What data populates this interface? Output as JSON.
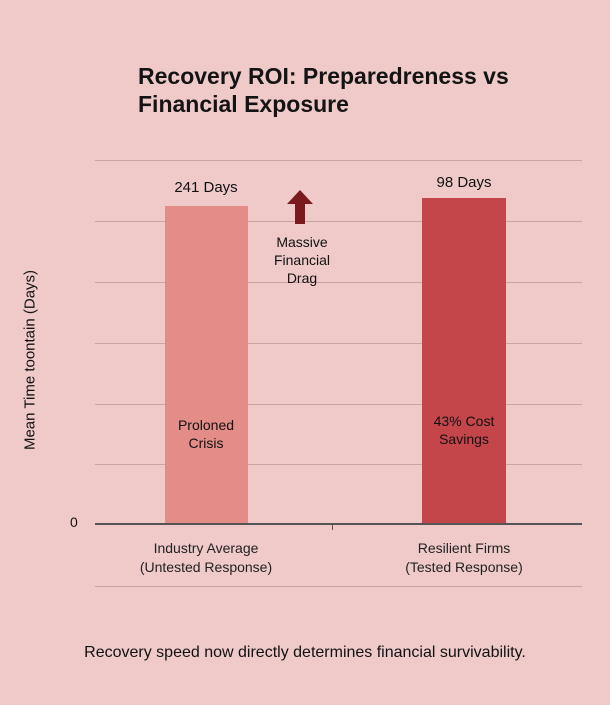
{
  "chart_data": {
    "type": "bar",
    "title": "Recovery ROI: Preparedress vs Financial Exposure",
    "title_lines": [
      "Recovery ROI: Preparedreness vs",
      "Financial Exposure"
    ],
    "ylabel": "Mean Time toontain (Days)",
    "xlabel": "",
    "y_tick_labels": [
      "0"
    ],
    "grid": true,
    "categories": [
      {
        "line1": "Industry Average",
        "line2": "(Untested Response)"
      },
      {
        "line1": "Resilient Firms",
        "line2": "(Tested Response)"
      }
    ],
    "values": [
      241,
      98
    ],
    "data_labels": [
      "241 Days",
      "98 Days"
    ],
    "bar_annotations": [
      [
        "Proloned",
        "Crisis"
      ],
      [
        "43% Cost",
        "Savings"
      ]
    ],
    "bar_colors": [
      "#e38c88",
      "#c4464b"
    ],
    "annotation": {
      "lines": [
        "Massive",
        "Financial",
        "Drag"
      ],
      "icon": "arrow-up-icon",
      "color": "#7b1a1e"
    }
  },
  "footer": "Recovery speed now directly determines financial survivability."
}
